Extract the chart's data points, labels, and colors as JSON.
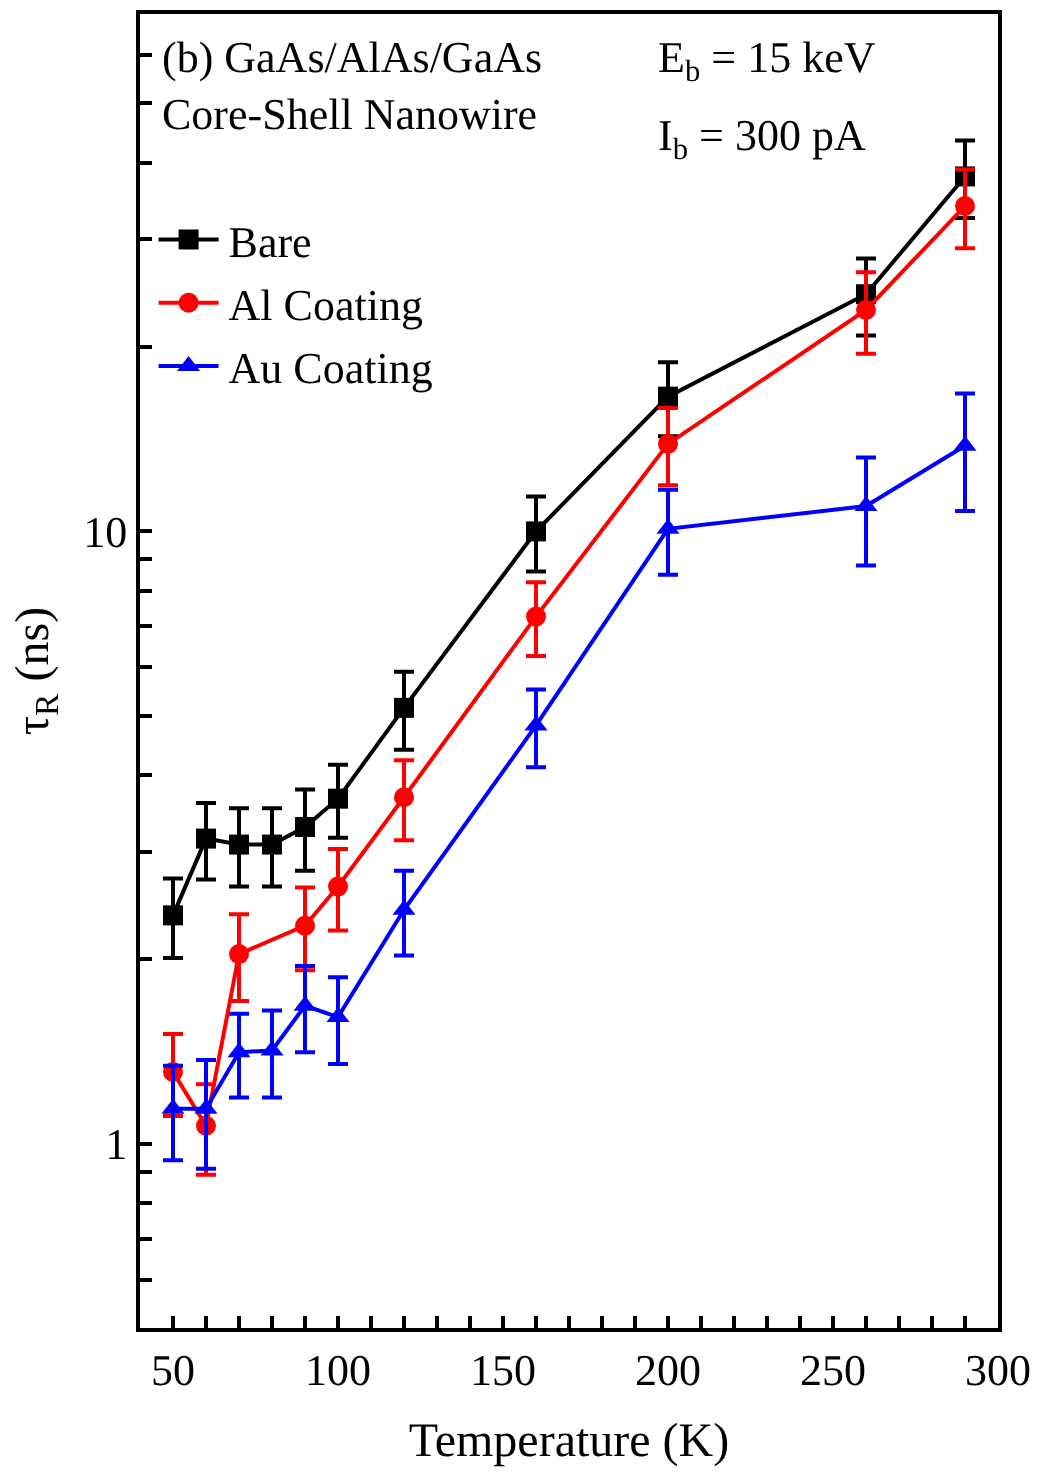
{
  "chart_data": {
    "type": "line",
    "xlabel": "Temperature (K)",
    "ylabel": "τ$_{R}$ (ns)",
    "annotations": [
      "(b) GaAs/AlAs/GaAs\nCore-Shell Nanowire",
      "E$_{b}$ = 15 keV",
      "I$_{b}$ = 300 pA"
    ],
    "x": [
      50,
      60,
      70,
      80,
      90,
      100,
      120,
      160,
      200,
      260,
      290
    ],
    "series": [
      {
        "name": "Bare",
        "color": "#000000",
        "marker": "square",
        "values": [
          2.36,
          3.15,
          3.08,
          3.08,
          3.29,
          3.66,
          5.15,
          10.0,
          16.6,
          24.4,
          38
        ],
        "errors": [
          0.35,
          0.45,
          0.45,
          0.45,
          0.5,
          0.5,
          0.75,
          1.4,
          2.3,
          3.5,
          5.5
        ]
      },
      {
        "name": "Al Coating",
        "color": "#ff0000",
        "marker": "circle",
        "values": [
          1.31,
          1.07,
          2.04,
          null,
          2.27,
          2.63,
          3.68,
          7.26,
          13.9,
          23.0,
          34.0
        ],
        "errors": [
          0.2,
          0.18,
          0.33,
          null,
          0.35,
          0.4,
          0.55,
          1.0,
          2.0,
          3.5,
          5.0
        ]
      },
      {
        "name": "Au Coating",
        "color": "#0000ff",
        "marker": "triangle",
        "values": [
          1.14,
          1.14,
          1.41,
          1.42,
          1.68,
          1.61,
          2.41,
          4.82,
          10.1,
          11.0,
          13.8
        ],
        "errors": [
          0.2,
          0.23,
          0.22,
          0.23,
          0.27,
          0.26,
          0.38,
          0.7,
          1.6,
          2.2,
          3.0
        ]
      }
    ],
    "log": "y",
    "xlim": [
      40,
      300
    ],
    "ylim": [
      0.5,
      70
    ],
    "xticks": [
      50,
      {
        "value": 60,
        "label": null
      },
      {
        "value": 70,
        "label": null
      },
      {
        "value": 80,
        "label": null
      },
      {
        "value": 90,
        "label": null
      },
      100,
      {
        "value": 110,
        "label": null
      },
      {
        "value": 120,
        "label": null
      },
      {
        "value": 130,
        "label": null
      },
      {
        "value": 140,
        "label": null
      },
      150,
      {
        "value": 160,
        "label": null
      },
      {
        "value": 170,
        "label": null
      },
      {
        "value": 180,
        "label": null
      },
      {
        "value": 190,
        "label": null
      },
      200,
      {
        "value": 210,
        "label": null
      },
      {
        "value": 220,
        "label": null
      },
      {
        "value": 230,
        "label": null
      },
      {
        "value": 240,
        "label": null
      },
      250,
      {
        "value": 260,
        "label": null
      },
      {
        "value": 270,
        "label": null
      },
      {
        "value": 280,
        "label": null
      },
      {
        "value": 290,
        "label": null
      },
      300
    ],
    "yticks": [
      {
        "value": 0.6,
        "label": null
      },
      {
        "value": 0.7,
        "label": null
      },
      {
        "value": 0.8,
        "label": null
      },
      {
        "value": 0.9,
        "label": null
      },
      1,
      {
        "value": 2,
        "label": null
      },
      {
        "value": 3,
        "label": null
      },
      {
        "value": 4,
        "label": null
      },
      {
        "value": 5,
        "label": null
      },
      {
        "value": 6,
        "label": null
      },
      {
        "value": 7,
        "label": null
      },
      {
        "value": 8,
        "label": null
      },
      {
        "value": 9,
        "label": null
      },
      10,
      {
        "value": 20,
        "label": null
      },
      {
        "value": 30,
        "label": null
      },
      {
        "value": 40,
        "label": null
      },
      {
        "value": 50,
        "label": null
      },
      {
        "value": 60,
        "label": null
      },
      {
        "value": 70,
        "label": null
      }
    ],
    "legend": "top left",
    "line_style": "solid"
  }
}
